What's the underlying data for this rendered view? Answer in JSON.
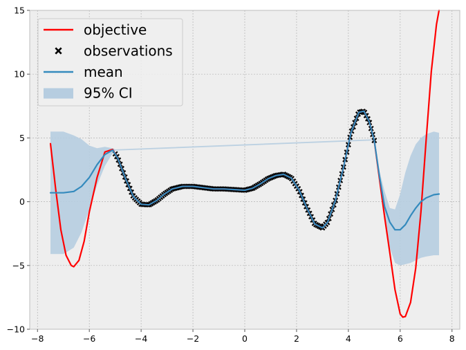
{
  "chart_data": {
    "type": "line",
    "title": "",
    "xlabel": "",
    "ylabel": "",
    "xlim": [
      -8.3,
      8.3
    ],
    "ylim": [
      -10,
      15
    ],
    "grid": true,
    "legend_placement": "top-left",
    "x_ticks": [
      {
        "value": -8,
        "label": "−8"
      },
      {
        "value": -6,
        "label": "−6"
      },
      {
        "value": -4,
        "label": "−4"
      },
      {
        "value": -2,
        "label": "−2"
      },
      {
        "value": 0,
        "label": "0"
      },
      {
        "value": 2,
        "label": "2"
      },
      {
        "value": 4,
        "label": "4"
      },
      {
        "value": 6,
        "label": "6"
      },
      {
        "value": 8,
        "label": "8"
      }
    ],
    "y_ticks": [
      {
        "value": -10,
        "label": "−10"
      },
      {
        "value": -5,
        "label": "−5"
      },
      {
        "value": 0,
        "label": "0"
      },
      {
        "value": 5,
        "label": "5"
      },
      {
        "value": 10,
        "label": "10"
      },
      {
        "value": 15,
        "label": "15"
      }
    ],
    "colors": {
      "objective": "#ff0000",
      "observations": "#000000",
      "mean": "#348abd",
      "ci": "#b6cde0",
      "background": "#eeeeee",
      "grid": "#b2b2b2"
    },
    "legend": [
      {
        "label": "objective",
        "kind": "line",
        "color": "#ff0000"
      },
      {
        "label": "observations",
        "kind": "marker",
        "color": "#000000"
      },
      {
        "label": "mean",
        "kind": "line",
        "color": "#348abd"
      },
      {
        "label": "95% CI",
        "kind": "patch",
        "color": "#b6cde0"
      }
    ],
    "series": [
      {
        "name": "objective",
        "type": "line",
        "x": [
          -7.5,
          -7.3,
          -7.1,
          -6.9,
          -6.7,
          -6.6,
          -6.4,
          -6.2,
          -6.0,
          -5.7,
          -5.4,
          -5.1,
          -4.9,
          -4.6,
          -4.3,
          -4.0,
          -3.7,
          -3.4,
          -3.1,
          -2.8,
          -2.4,
          -2.0,
          -1.6,
          -1.2,
          -0.8,
          -0.4,
          0.0,
          0.3,
          0.6,
          0.9,
          1.2,
          1.5,
          1.8,
          2.1,
          2.4,
          2.7,
          3.0,
          3.2,
          3.5,
          3.8,
          4.1,
          4.4,
          4.6,
          4.8,
          5.0,
          5.2,
          5.4,
          5.6,
          5.8,
          6.0,
          6.1,
          6.2,
          6.4,
          6.6,
          6.8,
          7.0,
          7.2,
          7.4,
          7.5
        ],
        "y": [
          4.55,
          1.0,
          -2.2,
          -4.2,
          -5.0,
          -5.1,
          -4.6,
          -3.1,
          -0.8,
          1.9,
          3.9,
          4.1,
          3.4,
          1.8,
          0.4,
          -0.2,
          -0.25,
          0.1,
          0.6,
          1.0,
          1.2,
          1.2,
          1.1,
          1.0,
          1.0,
          0.95,
          0.9,
          1.05,
          1.4,
          1.8,
          2.05,
          2.15,
          1.85,
          0.9,
          -0.5,
          -1.75,
          -2.05,
          -1.6,
          0.1,
          2.6,
          5.4,
          7.0,
          7.1,
          6.3,
          4.8,
          1.8,
          -1.2,
          -4.0,
          -6.9,
          -8.8,
          -9.05,
          -9.0,
          -7.9,
          -5.2,
          -0.8,
          4.8,
          10.2,
          13.9,
          15.0
        ]
      },
      {
        "name": "mean",
        "type": "line",
        "x": [
          -7.5,
          -7.0,
          -6.6,
          -6.3,
          -6.0,
          -5.7,
          -5.4,
          -5.1,
          -4.9,
          -4.6,
          -4.3,
          -4.0,
          -3.7,
          -3.4,
          -3.1,
          -2.8,
          -2.4,
          -2.0,
          -1.6,
          -1.2,
          -0.8,
          -0.4,
          0.0,
          0.3,
          0.6,
          0.9,
          1.2,
          1.5,
          1.8,
          2.1,
          2.4,
          2.7,
          3.0,
          3.2,
          3.5,
          3.8,
          4.1,
          4.4,
          4.6,
          4.8,
          5.0,
          5.2,
          5.4,
          5.6,
          5.8,
          6.0,
          6.2,
          6.4,
          6.6,
          6.8,
          7.0,
          7.3,
          7.5
        ],
        "y": [
          0.7,
          0.7,
          0.8,
          1.2,
          1.9,
          2.9,
          3.7,
          4.05,
          3.4,
          1.8,
          0.4,
          -0.2,
          -0.25,
          0.1,
          0.6,
          1.0,
          1.2,
          1.2,
          1.1,
          1.0,
          1.0,
          0.95,
          0.9,
          1.05,
          1.4,
          1.8,
          2.05,
          2.15,
          1.85,
          0.9,
          -0.5,
          -1.75,
          -2.05,
          -1.6,
          0.1,
          2.6,
          5.4,
          7.0,
          7.1,
          6.3,
          4.8,
          2.0,
          -0.4,
          -1.6,
          -2.2,
          -2.2,
          -1.8,
          -1.1,
          -0.5,
          0.0,
          0.3,
          0.55,
          0.6
        ]
      },
      {
        "name": "95% CI",
        "type": "band",
        "x": [
          -7.5,
          -7.0,
          -6.6,
          -6.3,
          -6.0,
          -5.7,
          -5.4,
          -5.1,
          -5.0,
          5.0,
          5.2,
          5.4,
          5.6,
          5.8,
          6.0,
          6.2,
          6.4,
          6.6,
          6.8,
          7.0,
          7.3,
          7.5
        ],
        "lower": [
          -4.1,
          -4.1,
          -3.6,
          -2.4,
          -0.6,
          1.3,
          2.8,
          3.8,
          4.0,
          4.8,
          1.6,
          -1.4,
          -3.6,
          -4.8,
          -5.0,
          -4.9,
          -4.8,
          -4.6,
          -4.4,
          -4.3,
          -4.2,
          -4.2
        ],
        "upper": [
          5.5,
          5.5,
          5.2,
          4.9,
          4.4,
          4.2,
          4.3,
          4.2,
          4.1,
          4.9,
          2.4,
          0.8,
          -0.5,
          -0.6,
          0.6,
          2.3,
          3.6,
          4.5,
          5.0,
          5.3,
          5.5,
          5.4
        ]
      },
      {
        "name": "observations",
        "type": "scatter",
        "marker": "x",
        "x_range": [
          -5.0,
          5.0
        ],
        "note_on_x": "dense samples of the objective between x = -5 and x = 5"
      }
    ]
  }
}
